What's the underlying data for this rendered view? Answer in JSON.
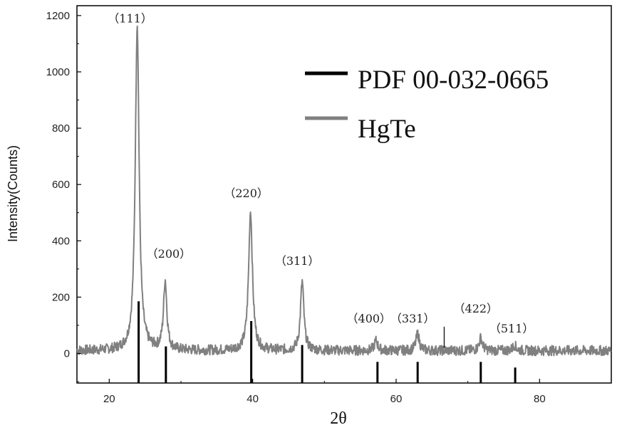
{
  "chart_data": {
    "type": "line",
    "xlabel": "2θ",
    "ylabel": "Intensity(Counts)",
    "xlim": [
      15.5,
      90
    ],
    "ylim": [
      -105,
      1235
    ],
    "xticks": [
      "20",
      "40",
      "60",
      "80"
    ],
    "yticks": [
      "0",
      "200",
      "400",
      "600",
      "800",
      "1000",
      "1200"
    ],
    "legend": {
      "position": "top-right",
      "entries": [
        "PDF 00-032-0665",
        "HgTe"
      ]
    },
    "colors": {
      "reference": "#000000",
      "pattern": "#808080"
    },
    "series": [
      {
        "name": "HgTe",
        "baseline": 10,
        "peaks": [
          {
            "x": 23.9,
            "y": 1170
          },
          {
            "x": 27.8,
            "y": 255
          },
          {
            "x": 39.7,
            "y": 505
          },
          {
            "x": 46.9,
            "y": 255
          },
          {
            "x": 57.2,
            "y": 45
          },
          {
            "x": 63.0,
            "y": 70
          },
          {
            "x": 71.8,
            "y": 55
          },
          {
            "x": 76.5,
            "y": 30
          }
        ]
      },
      {
        "name": "PDF 00-032-0665",
        "sticks": [
          {
            "x": 24.1,
            "y": 185
          },
          {
            "x": 27.9,
            "y": 25
          },
          {
            "x": 39.8,
            "y": 115
          },
          {
            "x": 46.9,
            "y": 30
          },
          {
            "x": 57.4,
            "y": -30
          },
          {
            "x": 63.0,
            "y": -30
          },
          {
            "x": 71.8,
            "y": -30
          },
          {
            "x": 76.6,
            "y": -50
          }
        ]
      }
    ],
    "annotations": [
      {
        "text": "（111）",
        "x": 19.8,
        "y": 1175
      },
      {
        "text": "（200）",
        "x": 25.2,
        "y": 340
      },
      {
        "text": "（220）",
        "x": 36.0,
        "y": 555
      },
      {
        "text": "（311）",
        "x": 43.1,
        "y": 315
      },
      {
        "text": "（400）",
        "x": 53.1,
        "y": 110
      },
      {
        "text": "（331）",
        "x": 59.2,
        "y": 110
      },
      {
        "text": "（422）",
        "x": 68.0,
        "y": 145
      },
      {
        "text": "（511）",
        "x": 73.0,
        "y": 75
      }
    ],
    "marker": {
      "x": 66.7,
      "y_from": 95,
      "y_to": 20
    }
  }
}
